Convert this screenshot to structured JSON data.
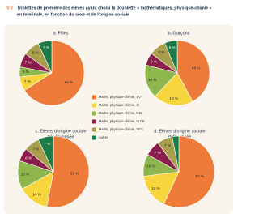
{
  "header": {
    "label": "V.3",
    "title_lines": [
      "Triplettes de première des élèves ayant choisi la doublette « mathématiques, physique-chimie »",
      "en terminale, en fonction du sexe et de l'origine sociale"
    ]
  },
  "legend": {
    "items": [
      {
        "name": "Maths, physique-chimie, SVT",
        "color": "#ef7b3b"
      },
      {
        "name": "Maths, physique-chimie, SI",
        "color": "#f6d63c"
      },
      {
        "name": "Maths, physique-chimie, NSI",
        "color": "#8db64c"
      },
      {
        "name": "Maths, physique-chimie, LLCE",
        "color": "#8a1d4c"
      },
      {
        "name": "Maths, physique-chimie, SES",
        "color": "#a89e4e"
      },
      {
        "name": "Autres",
        "color": "#1e7a48"
      }
    ]
  },
  "chart_data": [
    {
      "type": "pie",
      "title": [
        "a. Filles"
      ],
      "values": [
        66,
        7,
        5,
        7,
        8,
        7
      ],
      "value_labels": [
        "66 %",
        "7 %",
        "5 %",
        "7 %",
        "8 %",
        "7 %"
      ]
    },
    {
      "type": "pie",
      "title": [
        "b. Garçons"
      ],
      "values": [
        40,
        19,
        16,
        6,
        8,
        6
      ],
      "value_labels": [
        "40 %",
        "19 %",
        "16 %",
        "6 %",
        "8 %",
        "6 %"
      ]
    },
    {
      "type": "pie",
      "title": [
        "c. Elèves d'origine sociale",
        "très favorisée"
      ],
      "values": [
        53,
        14,
        13,
        6,
        7,
        7
      ],
      "value_labels": [
        "53 %",
        "14 %",
        "13 %",
        "6 %",
        "7 %",
        "7 %"
      ]
    },
    {
      "type": "pie",
      "title": [
        "d. Elèves d'origine sociale",
        "défavorisée"
      ],
      "values": [
        57,
        16,
        10,
        7,
        7,
        3
      ],
      "value_labels": [
        "57 %",
        "16 %",
        "10 %",
        "7 %",
        "7 %",
        null
      ]
    }
  ]
}
